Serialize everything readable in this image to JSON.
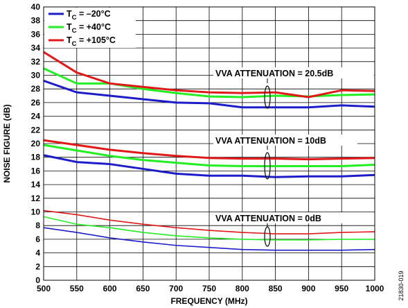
{
  "chart_data": {
    "type": "line",
    "xlabel": "FREQUENCY (MHz)",
    "ylabel": "NOISE FIGURE (dB)",
    "xlim": [
      500,
      1000
    ],
    "ylim": [
      0,
      40
    ],
    "x_ticks": [
      "500",
      "550",
      "600",
      "650",
      "700",
      "750",
      "800",
      "850",
      "900",
      "950",
      "1000"
    ],
    "y_ticks": [
      "0",
      "2",
      "4",
      "6",
      "8",
      "10",
      "12",
      "14",
      "16",
      "18",
      "20",
      "22",
      "24",
      "26",
      "28",
      "30",
      "32",
      "34",
      "36",
      "38",
      "40"
    ],
    "grid": true,
    "legend_position": "top-left",
    "legend": [
      {
        "prefix": "T",
        "sub": "C",
        "suffix": " = –20°C",
        "color": "#1c1cc8"
      },
      {
        "prefix": "T",
        "sub": "C",
        "suffix": " = +40°C",
        "color": "#22ee22"
      },
      {
        "prefix": "T",
        "sub": "C",
        "suffix": " = +105°C",
        "color": "#e01818"
      }
    ],
    "annotations": [
      {
        "text": "VVA ATTENUATION = 20.5dB"
      },
      {
        "text": "VVA ATTENUATION = 10dB"
      },
      {
        "text": "VVA ATTENUATION = 0dB"
      }
    ],
    "x": [
      500,
      550,
      600,
      650,
      700,
      750,
      800,
      850,
      900,
      950,
      1000
    ],
    "series": [
      {
        "group": "20.5dB",
        "temp": "-20",
        "color": "#1c1cc8",
        "width": 3,
        "values": [
          29.2,
          27.5,
          27.0,
          26.5,
          26.0,
          25.9,
          25.3,
          25.3,
          25.3,
          25.6,
          25.4
        ]
      },
      {
        "group": "20.5dB",
        "temp": "40",
        "color": "#22ee22",
        "width": 3,
        "values": [
          31.0,
          28.8,
          28.8,
          28.0,
          27.4,
          26.9,
          26.8,
          27.0,
          26.9,
          27.1,
          27.2
        ]
      },
      {
        "group": "20.5dB",
        "temp": "105",
        "color": "#e01818",
        "width": 3,
        "values": [
          33.4,
          30.4,
          28.8,
          28.3,
          27.8,
          27.5,
          27.4,
          27.5,
          26.8,
          27.8,
          27.7
        ]
      },
      {
        "group": "10dB",
        "temp": "-20",
        "color": "#1c1cc8",
        "width": 3,
        "values": [
          18.3,
          17.3,
          17.0,
          16.3,
          15.6,
          15.3,
          15.3,
          15.1,
          15.2,
          15.2,
          15.4
        ]
      },
      {
        "group": "10dB",
        "temp": "40",
        "color": "#22ee22",
        "width": 3,
        "values": [
          19.8,
          19.0,
          18.2,
          17.6,
          17.2,
          16.8,
          16.7,
          16.7,
          16.7,
          16.7,
          16.9
        ]
      },
      {
        "group": "10dB",
        "temp": "105",
        "color": "#e01818",
        "width": 3,
        "values": [
          20.5,
          19.8,
          19.1,
          18.6,
          18.2,
          17.9,
          17.8,
          17.8,
          17.7,
          17.8,
          17.9
        ]
      },
      {
        "group": "0dB",
        "temp": "-20",
        "color": "#1c1cc8",
        "width": 1.6,
        "values": [
          7.7,
          7.0,
          6.2,
          5.6,
          5.1,
          4.8,
          4.5,
          4.4,
          4.4,
          4.4,
          4.5
        ]
      },
      {
        "group": "0dB",
        "temp": "40",
        "color": "#22ee22",
        "width": 1.6,
        "values": [
          9.3,
          8.2,
          7.7,
          7.0,
          6.5,
          6.2,
          6.0,
          5.9,
          5.9,
          6.0,
          6.0
        ]
      },
      {
        "group": "0dB",
        "temp": "105",
        "color": "#e01818",
        "width": 1.6,
        "values": [
          10.2,
          9.6,
          8.8,
          8.2,
          7.7,
          7.3,
          7.0,
          6.8,
          6.8,
          7.0,
          7.1
        ]
      }
    ]
  },
  "figure_id": "21830-019"
}
